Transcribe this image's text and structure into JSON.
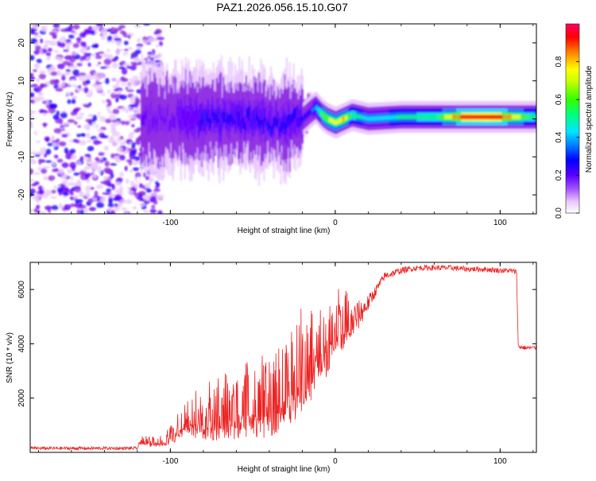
{
  "title": "PAZ1.2026.056.15.10.G07",
  "colors": {
    "snr_line": "#ee2222",
    "axis": "#000000",
    "colormap": [
      "#ffffff",
      "#e9c8ff",
      "#8e2be2",
      "#6a00ff",
      "#1a00ff",
      "#0080ff",
      "#00e5ff",
      "#00ff80",
      "#44ff00",
      "#ffff00",
      "#ff9900",
      "#ff0000",
      "#ff0066"
    ]
  },
  "chart_data": [
    {
      "type": "heatmap",
      "name": "spectrogram",
      "xlabel": "Height of straight line (km)",
      "ylabel": "Frequency (Hz)",
      "xlim": [
        -185,
        122
      ],
      "ylim": [
        -25,
        25
      ],
      "xticks": [
        -100,
        0,
        100
      ],
      "xtick_labels": [
        "-100",
        "0",
        "100"
      ],
      "yticks": [
        -20,
        -10,
        0,
        10,
        20
      ],
      "ytick_labels": [
        "-20",
        "-10",
        "0",
        "10",
        "20"
      ],
      "ridge": {
        "description": "dominant frequency ridge vs height",
        "x": [
          -100,
          -80,
          -60,
          -40,
          -30,
          -20,
          -15,
          -12,
          -8,
          -5,
          0,
          5,
          10,
          20,
          40,
          60,
          80,
          100,
          122
        ],
        "y": [
          0,
          0,
          0,
          -1,
          -1,
          0,
          2,
          3,
          1,
          0,
          -1,
          0,
          1,
          0,
          0.5,
          0.5,
          0.5,
          0.5,
          0.5
        ],
        "amplitude": [
          0.25,
          0.3,
          0.3,
          0.3,
          0.3,
          0.35,
          0.35,
          0.45,
          0.7,
          0.7,
          0.75,
          0.8,
          0.6,
          0.5,
          0.55,
          0.6,
          0.95,
          0.9,
          0.55
        ]
      },
      "noise_region": {
        "x_from": -185,
        "x_to": -120,
        "y_from": -25,
        "y_to": 25
      },
      "colorbar": {
        "label": "Normalized spectral amplitude",
        "ticks": [
          0.0,
          0.2,
          0.4,
          0.6,
          0.8
        ],
        "tick_labels": [
          "0.0",
          "0.2",
          "0.4",
          "0.6",
          "0.8"
        ],
        "range": [
          0,
          1
        ]
      }
    },
    {
      "type": "line",
      "name": "snr",
      "xlabel": "Height of straight line (km)",
      "ylabel": "SNR (10 * v/v)",
      "xlim": [
        -185,
        122
      ],
      "ylim": [
        0,
        7000
      ],
      "xticks": [
        -100,
        0,
        100
      ],
      "xtick_labels": [
        "-100",
        "0",
        "100"
      ],
      "yticks": [
        2000,
        4000,
        6000
      ],
      "ytick_labels": [
        "2000",
        "4000",
        "6000"
      ],
      "series": [
        {
          "name": "SNR",
          "x": [
            -185,
            -160,
            -140,
            -125,
            -120,
            -118,
            -110,
            -100,
            -90,
            -80,
            -70,
            -60,
            -50,
            -40,
            -30,
            -25,
            -20,
            -15,
            -10,
            -5,
            0,
            5,
            10,
            15,
            20,
            25,
            30,
            40,
            50,
            60,
            70,
            80,
            90,
            100,
            105,
            110,
            111,
            115,
            122
          ],
          "y": [
            150,
            150,
            150,
            150,
            150,
            400,
            300,
            500,
            1000,
            1100,
            1200,
            1300,
            1400,
            1500,
            2000,
            2200,
            2700,
            2900,
            3600,
            3700,
            4400,
            4500,
            4800,
            5100,
            5500,
            6000,
            6500,
            6700,
            6800,
            6800,
            6800,
            6750,
            6750,
            6700,
            6700,
            6650,
            3900,
            3850,
            3850
          ],
          "noise_amplitude": [
            60,
            60,
            60,
            60,
            60,
            120,
            200,
            300,
            600,
            900,
            1100,
            1200,
            1300,
            1400,
            1500,
            1500,
            1800,
            1500,
            1400,
            1300,
            1200,
            1000,
            800,
            500,
            300,
            200,
            150,
            120,
            100,
            100,
            100,
            100,
            100,
            100,
            100,
            100,
            80,
            80,
            80
          ]
        }
      ]
    }
  ]
}
